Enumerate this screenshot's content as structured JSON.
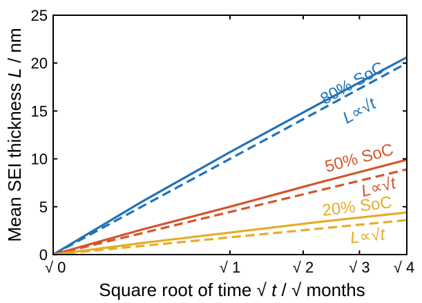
{
  "chart_data": {
    "type": "line",
    "xlabel": "Square root of time √ t / √ months",
    "ylabel": "Mean SEI thickness L / nm",
    "xlim": [
      0,
      2
    ],
    "ylim": [
      0,
      25
    ],
    "x_ticks": [
      {
        "value": 0,
        "label": "√ 0"
      },
      {
        "value": 1,
        "label": "√ 1"
      },
      {
        "value": 1.414,
        "label": "√ 2"
      },
      {
        "value": 1.732,
        "label": "√ 3"
      },
      {
        "value": 2,
        "label": "√ 4"
      }
    ],
    "y_ticks": [
      {
        "value": 0,
        "label": "0"
      },
      {
        "value": 5,
        "label": "5"
      },
      {
        "value": 10,
        "label": "10"
      },
      {
        "value": 15,
        "label": "15"
      },
      {
        "value": 20,
        "label": "20"
      },
      {
        "value": 25,
        "label": "25"
      }
    ],
    "grid": false,
    "series": [
      {
        "name": "80% SoC",
        "fit_label": "L∝√t",
        "color": "#1f72b8",
        "solid": {
          "x": [
            0,
            0.5,
            1.0,
            1.5,
            2.0
          ],
          "y": [
            0,
            5.5,
            10.7,
            15.7,
            20.6
          ]
        },
        "dashed": {
          "x": [
            0,
            2.0
          ],
          "y": [
            0,
            20.0
          ]
        }
      },
      {
        "name": "50% SoC",
        "fit_label": "L∝√t",
        "color": "#d4552c",
        "solid": {
          "x": [
            0,
            0.5,
            1.0,
            1.5,
            2.0
          ],
          "y": [
            0,
            2.6,
            5.0,
            7.5,
            9.9
          ]
        },
        "dashed": {
          "x": [
            0,
            2.0
          ],
          "y": [
            0,
            8.9
          ]
        }
      },
      {
        "name": "20% SoC",
        "fit_label": "L∝√t",
        "color": "#e7ac26",
        "solid": {
          "x": [
            0,
            0.5,
            1.0,
            1.5,
            2.0
          ],
          "y": [
            0,
            1.2,
            2.3,
            3.4,
            4.4
          ]
        },
        "dashed": {
          "x": [
            0,
            2.0
          ],
          "y": [
            0,
            3.6
          ]
        }
      }
    ]
  }
}
